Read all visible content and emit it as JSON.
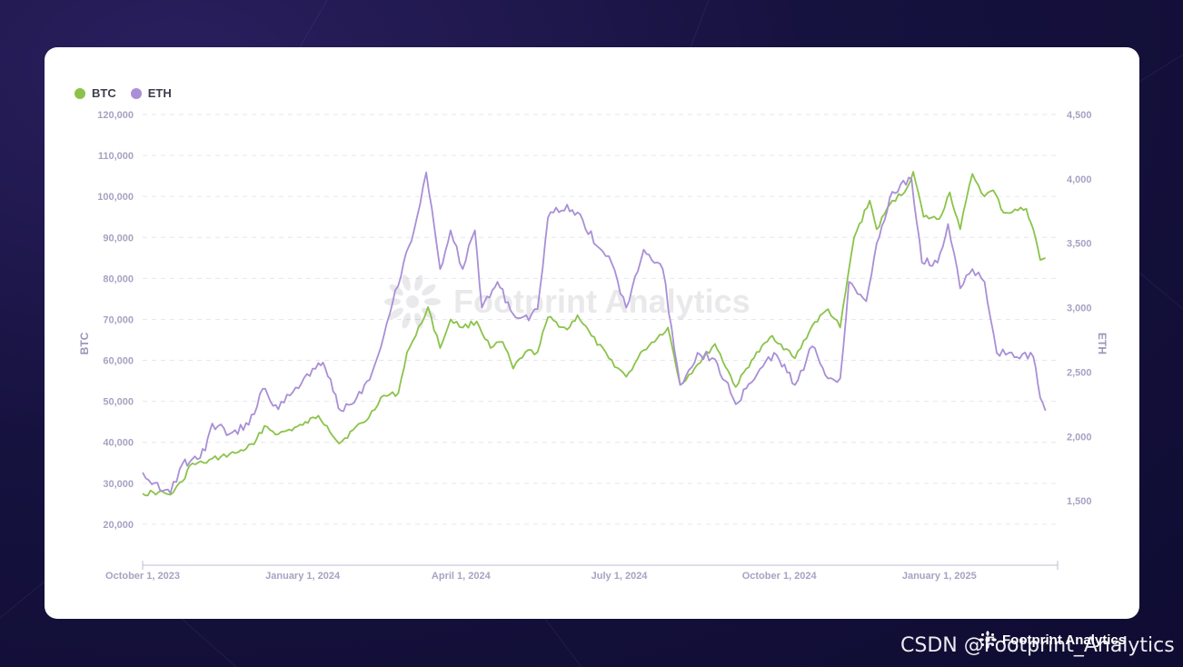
{
  "legend": [
    {
      "label": "BTC",
      "color": "#8bc34a"
    },
    {
      "label": "ETH",
      "color": "#a98fd6"
    }
  ],
  "watermark": "Footprint Analytics",
  "footer": {
    "brand": "Footprint Analytics",
    "csdn": "CSDN @Footprint_Analytics"
  },
  "chart_data": {
    "type": "line",
    "dual_axis": true,
    "ylabel_left": "BTC",
    "ylabel_right": "ETH",
    "ylim_left": [
      10000,
      120000
    ],
    "ylim_right": [
      1000,
      4500
    ],
    "yticks_left": [
      20000,
      30000,
      40000,
      50000,
      60000,
      70000,
      80000,
      90000,
      100000,
      110000,
      120000
    ],
    "ytick_labels_left": [
      "20,000",
      "30,000",
      "40,000",
      "50,000",
      "60,000",
      "70,000",
      "80,000",
      "90,000",
      "100,000",
      "110,000",
      "120,000"
    ],
    "yticks_right": [
      1500,
      2000,
      2500,
      3000,
      3500,
      4000,
      4500
    ],
    "ytick_labels_right": [
      "1,500",
      "2,000",
      "2,500",
      "3,000",
      "3,500",
      "4,000",
      "4,500"
    ],
    "xlim": [
      "2023-10-01",
      "2025-03-10"
    ],
    "xticks": [
      "2023-10-01",
      "2024-01-01",
      "2024-04-01",
      "2024-07-01",
      "2024-10-01",
      "2025-01-01"
    ],
    "xtick_labels": [
      "October 1, 2023",
      "January 1, 2024",
      "April 1, 2024",
      "July 1, 2024",
      "October 1, 2024",
      "January 1, 2025"
    ],
    "grid": true,
    "legend_position": "top-left",
    "series": [
      {
        "name": "BTC",
        "axis": "left",
        "color": "#8bc34a",
        "points": [
          [
            "2023-10-01",
            27500
          ],
          [
            "2023-10-10",
            27800
          ],
          [
            "2023-10-17",
            27200
          ],
          [
            "2023-10-24",
            30500
          ],
          [
            "2023-10-28",
            34300
          ],
          [
            "2023-11-05",
            35000
          ],
          [
            "2023-11-15",
            36500
          ],
          [
            "2023-11-25",
            37600
          ],
          [
            "2023-12-04",
            39500
          ],
          [
            "2023-12-10",
            44000
          ],
          [
            "2023-12-18",
            42000
          ],
          [
            "2024-01-01",
            44200
          ],
          [
            "2024-01-10",
            46500
          ],
          [
            "2024-01-15",
            44000
          ],
          [
            "2024-01-22",
            39700
          ],
          [
            "2024-01-30",
            43000
          ],
          [
            "2024-02-08",
            46000
          ],
          [
            "2024-02-15",
            51000
          ],
          [
            "2024-02-25",
            52000
          ],
          [
            "2024-03-01",
            62000
          ],
          [
            "2024-03-06",
            66000
          ],
          [
            "2024-03-13",
            73000
          ],
          [
            "2024-03-20",
            63000
          ],
          [
            "2024-03-26",
            70000
          ],
          [
            "2024-04-02",
            68000
          ],
          [
            "2024-04-10",
            69500
          ],
          [
            "2024-04-18",
            63000
          ],
          [
            "2024-04-25",
            64500
          ],
          [
            "2024-05-01",
            58000
          ],
          [
            "2024-05-08",
            62000
          ],
          [
            "2024-05-15",
            62000
          ],
          [
            "2024-05-21",
            70500
          ],
          [
            "2024-06-01",
            67500
          ],
          [
            "2024-06-07",
            71000
          ],
          [
            "2024-06-15",
            66000
          ],
          [
            "2024-06-25",
            60500
          ],
          [
            "2024-07-05",
            56000
          ],
          [
            "2024-07-15",
            62500
          ],
          [
            "2024-07-29",
            68000
          ],
          [
            "2024-08-05",
            54000
          ],
          [
            "2024-08-15",
            59000
          ],
          [
            "2024-08-25",
            64000
          ],
          [
            "2024-09-06",
            53500
          ],
          [
            "2024-09-15",
            60000
          ],
          [
            "2024-09-27",
            66000
          ],
          [
            "2024-10-10",
            60500
          ],
          [
            "2024-10-20",
            68500
          ],
          [
            "2024-10-29",
            72500
          ],
          [
            "2024-11-05",
            68000
          ],
          [
            "2024-11-13",
            90000
          ],
          [
            "2024-11-22",
            99000
          ],
          [
            "2024-11-26",
            92000
          ],
          [
            "2024-12-05",
            99000
          ],
          [
            "2024-12-12",
            101000
          ],
          [
            "2024-12-17",
            106000
          ],
          [
            "2024-12-23",
            95000
          ],
          [
            "2025-01-01",
            94500
          ],
          [
            "2025-01-07",
            101000
          ],
          [
            "2025-01-13",
            92000
          ],
          [
            "2025-01-20",
            105500
          ],
          [
            "2025-01-27",
            100000
          ],
          [
            "2025-02-01",
            101500
          ],
          [
            "2025-02-07",
            96000
          ],
          [
            "2025-02-20",
            97000
          ],
          [
            "2025-02-24",
            92000
          ],
          [
            "2025-02-28",
            84500
          ],
          [
            "2025-03-03",
            85000
          ]
        ]
      },
      {
        "name": "ETH",
        "axis": "right",
        "color": "#a98fd6",
        "points": [
          [
            "2023-10-01",
            1720
          ],
          [
            "2023-10-08",
            1640
          ],
          [
            "2023-10-17",
            1560
          ],
          [
            "2023-10-24",
            1790
          ],
          [
            "2023-10-28",
            1800
          ],
          [
            "2023-11-06",
            1890
          ],
          [
            "2023-11-10",
            2100
          ],
          [
            "2023-11-20",
            2020
          ],
          [
            "2023-12-01",
            2090
          ],
          [
            "2023-12-09",
            2370
          ],
          [
            "2023-12-18",
            2210
          ],
          [
            "2023-12-28",
            2380
          ],
          [
            "2024-01-10",
            2570
          ],
          [
            "2024-01-14",
            2530
          ],
          [
            "2024-01-23",
            2200
          ],
          [
            "2024-02-01",
            2300
          ],
          [
            "2024-02-10",
            2500
          ],
          [
            "2024-02-20",
            2950
          ],
          [
            "2024-02-28",
            3350
          ],
          [
            "2024-03-05",
            3600
          ],
          [
            "2024-03-12",
            4050
          ],
          [
            "2024-03-20",
            3300
          ],
          [
            "2024-03-26",
            3600
          ],
          [
            "2024-04-02",
            3300
          ],
          [
            "2024-04-09",
            3600
          ],
          [
            "2024-04-13",
            3000
          ],
          [
            "2024-04-22",
            3200
          ],
          [
            "2024-05-01",
            2950
          ],
          [
            "2024-05-10",
            2900
          ],
          [
            "2024-05-15",
            2990
          ],
          [
            "2024-05-21",
            3700
          ],
          [
            "2024-06-01",
            3800
          ],
          [
            "2024-06-10",
            3680
          ],
          [
            "2024-06-18",
            3480
          ],
          [
            "2024-06-25",
            3400
          ],
          [
            "2024-07-05",
            3000
          ],
          [
            "2024-07-15",
            3450
          ],
          [
            "2024-07-26",
            3300
          ],
          [
            "2024-08-05",
            2400
          ],
          [
            "2024-08-15",
            2650
          ],
          [
            "2024-08-25",
            2600
          ],
          [
            "2024-09-06",
            2250
          ],
          [
            "2024-09-15",
            2420
          ],
          [
            "2024-09-28",
            2650
          ],
          [
            "2024-10-10",
            2400
          ],
          [
            "2024-10-20",
            2700
          ],
          [
            "2024-10-29",
            2450
          ],
          [
            "2024-11-05",
            2450
          ],
          [
            "2024-11-10",
            3200
          ],
          [
            "2024-11-20",
            3050
          ],
          [
            "2024-11-26",
            3500
          ],
          [
            "2024-12-05",
            3900
          ],
          [
            "2024-12-16",
            4000
          ],
          [
            "2024-12-22",
            3350
          ],
          [
            "2024-12-31",
            3350
          ],
          [
            "2025-01-06",
            3650
          ],
          [
            "2025-01-13",
            3150
          ],
          [
            "2025-01-20",
            3300
          ],
          [
            "2025-01-27",
            3200
          ],
          [
            "2025-02-03",
            2650
          ],
          [
            "2025-02-10",
            2650
          ],
          [
            "2025-02-24",
            2620
          ],
          [
            "2025-02-28",
            2300
          ],
          [
            "2025-03-03",
            2200
          ]
        ]
      }
    ]
  }
}
